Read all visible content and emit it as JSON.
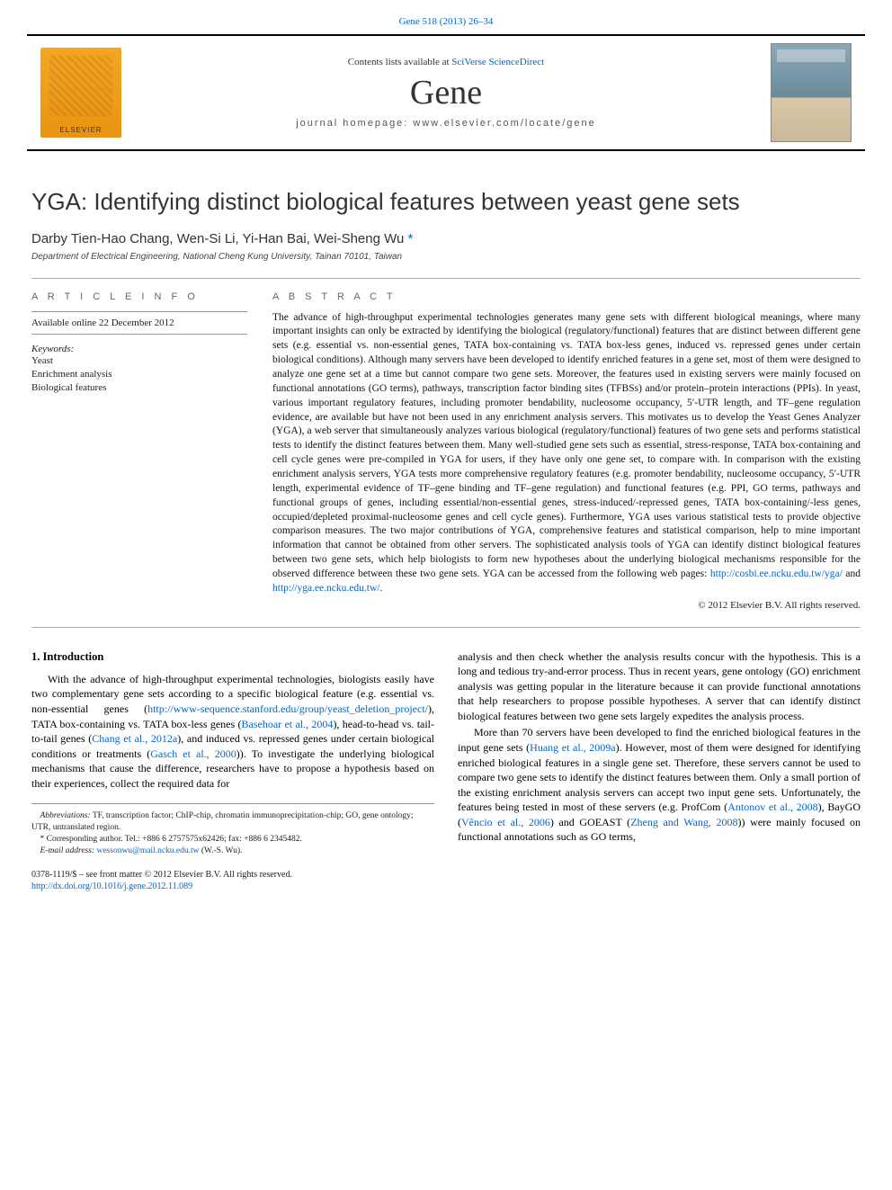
{
  "header": {
    "citation": "Gene 518 (2013) 26–34"
  },
  "banner": {
    "contents_prefix": "Contents lists available at ",
    "contents_link": "SciVerse ScienceDirect",
    "journal": "Gene",
    "homepage_label": "journal homepage: www.elsevier.com/locate/gene",
    "publisher_name": "ELSEVIER"
  },
  "title": "YGA: Identifying distinct biological features between yeast gene sets",
  "authors": "Darby Tien-Hao Chang, Wen-Si Li, Yi-Han Bai, Wei-Sheng Wu ",
  "corr_marker": "*",
  "affiliation": "Department of Electrical Engineering, National Cheng Kung University, Tainan 70101, Taiwan",
  "article_info": {
    "heading": "a r t i c l e   i n f o",
    "available": "Available online 22 December 2012",
    "keywords_label": "Keywords:",
    "keywords": [
      "Yeast",
      "Enrichment analysis",
      "Biological features"
    ]
  },
  "abstract": {
    "heading": "a b s t r a c t",
    "text": "The advance of high-throughput experimental technologies generates many gene sets with different biological meanings, where many important insights can only be extracted by identifying the biological (regulatory/functional) features that are distinct between different gene sets (e.g. essential vs. non-essential genes, TATA box-containing vs. TATA box-less genes, induced vs. repressed genes under certain biological conditions). Although many servers have been developed to identify enriched features in a gene set, most of them were designed to analyze one gene set at a time but cannot compare two gene sets. Moreover, the features used in existing servers were mainly focused on functional annotations (GO terms), pathways, transcription factor binding sites (TFBSs) and/or protein–protein interactions (PPIs). In yeast, various important regulatory features, including promoter bendability, nucleosome occupancy, 5′-UTR length, and TF–gene regulation evidence, are available but have not been used in any enrichment analysis servers. This motivates us to develop the Yeast Genes Analyzer (YGA), a web server that simultaneously analyzes various biological (regulatory/functional) features of two gene sets and performs statistical tests to identify the distinct features between them. Many well-studied gene sets such as essential, stress-response, TATA box-containing and cell cycle genes were pre-compiled in YGA for users, if they have only one gene set, to compare with. In comparison with the existing enrichment analysis servers, YGA tests more comprehensive regulatory features (e.g. promoter bendability, nucleosome occupancy, 5′-UTR length, experimental evidence of TF–gene binding and TF–gene regulation) and functional features (e.g. PPI, GO terms, pathways and functional groups of genes, including essential/non-essential genes, stress-induced/-repressed genes, TATA box-containing/-less genes, occupied/depleted proximal-nucleosome genes and cell cycle genes). Furthermore, YGA uses various statistical tests to provide objective comparison measures. The two major contributions of YGA, comprehensive features and statistical comparison, help to mine important information that cannot be obtained from other servers. The sophisticated analysis tools of YGA can identify distinct biological features between two gene sets, which help biologists to form new hypotheses about the underlying biological mechanisms responsible for the observed difference between these two gene sets. YGA can be accessed from the following web pages: ",
    "link1": "http://cosbi.ee.ncku.edu.tw/yga/",
    "link_join": " and ",
    "link2": "http://yga.ee.ncku.edu.tw/",
    "tail": ".",
    "copyright": "© 2012 Elsevier B.V. All rights reserved."
  },
  "intro": {
    "heading": "1. Introduction",
    "col1_p1a": "With the advance of high-throughput experimental technologies, biologists easily have two complementary gene sets according to a specific biological feature (e.g. essential vs. non-essential genes (",
    "col1_link1": "http://www-sequence.stanford.edu/group/yeast_deletion_project/",
    "col1_p1b": "), TATA box-containing vs. TATA box-less genes (",
    "col1_cite1": "Basehoar et al., 2004",
    "col1_p1c": "), head-to-head vs. tail-to-tail genes (",
    "col1_cite2": "Chang et al., 2012a",
    "col1_p1d": "), and induced vs. repressed genes under certain biological conditions or treatments (",
    "col1_cite3": "Gasch et al., 2000",
    "col1_p1e": ")). To investigate the underlying biological mechanisms that cause the difference, researchers have to propose a hypothesis based on their experiences, collect the required data for",
    "col2_p1": "analysis and then check whether the analysis results concur with the hypothesis. This is a long and tedious try-and-error process. Thus in recent years, gene ontology (GO) enrichment analysis was getting popular in the literature because it can provide functional annotations that help researchers to propose possible hypotheses. A server that can identify distinct biological features between two gene sets largely expedites the analysis process.",
    "col2_p2a": "More than 70 servers have been developed to find the enriched biological features in the input gene sets (",
    "col2_cite1": "Huang et al., 2009a",
    "col2_p2b": "). However, most of them were designed for identifying enriched biological features in a single gene set. Therefore, these servers cannot be used to compare two gene sets to identify the distinct features between them. Only a small portion of the existing enrichment analysis servers can accept two input gene sets. Unfortunately, the features being tested in most of these servers (e.g. ProfCom (",
    "col2_cite2": "Antonov et al., 2008",
    "col2_p2c": "), BayGO (",
    "col2_cite3": "Vêncio et al., 2006",
    "col2_p2d": ") and GOEAST (",
    "col2_cite4": "Zheng and Wang, 2008",
    "col2_p2e": ")) were mainly focused on functional annotations such as GO terms,"
  },
  "footnotes": {
    "abbrev_label": "Abbreviations:",
    "abbrev_text": " TF, transcription factor; ChIP-chip, chromatin immunoprecipitation-chip; GO, gene ontology; UTR, untranslated region.",
    "corr_label": "* Corresponding author. Tel.: +886 6 2757575x62426; fax: +886 6 2345482.",
    "email_label": "E-mail address: ",
    "email": "wessonwu@mail.ncku.edu.tw",
    "email_suffix": " (W.-S. Wu)."
  },
  "bottom": {
    "line1": "0378-1119/$ – see front matter © 2012 Elsevier B.V. All rights reserved.",
    "doi": "http://dx.doi.org/10.1016/j.gene.2012.11.089"
  },
  "colors": {
    "link": "#0066cc",
    "text": "#000000",
    "rule": "#999999"
  }
}
